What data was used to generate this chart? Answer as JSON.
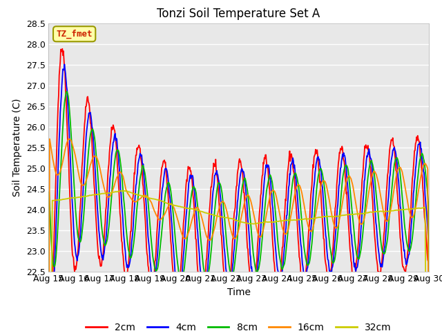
{
  "title": "Tonzi Soil Temperature Set A",
  "xlabel": "Time",
  "ylabel": "Soil Temperature (C)",
  "ylim": [
    22.5,
    28.5
  ],
  "yticks": [
    22.5,
    23.0,
    23.5,
    24.0,
    24.5,
    25.0,
    25.5,
    26.0,
    26.5,
    27.0,
    27.5,
    28.0,
    28.5
  ],
  "xtick_labels": [
    "Aug 15",
    "Aug 16",
    "Aug 17",
    "Aug 18",
    "Aug 19",
    "Aug 20",
    "Aug 21",
    "Aug 22",
    "Aug 23",
    "Aug 24",
    "Aug 25",
    "Aug 26",
    "Aug 27",
    "Aug 28",
    "Aug 29",
    "Aug 30"
  ],
  "legend_label": "TZ_fmet",
  "series_labels": [
    "2cm",
    "4cm",
    "8cm",
    "16cm",
    "32cm"
  ],
  "series_colors": [
    "#ff0000",
    "#0000ff",
    "#00bb00",
    "#ff8800",
    "#cccc00"
  ],
  "background_color": "#e8e8e8",
  "title_fontsize": 12,
  "axis_fontsize": 10,
  "tick_fontsize": 9,
  "legend_fontsize": 10
}
